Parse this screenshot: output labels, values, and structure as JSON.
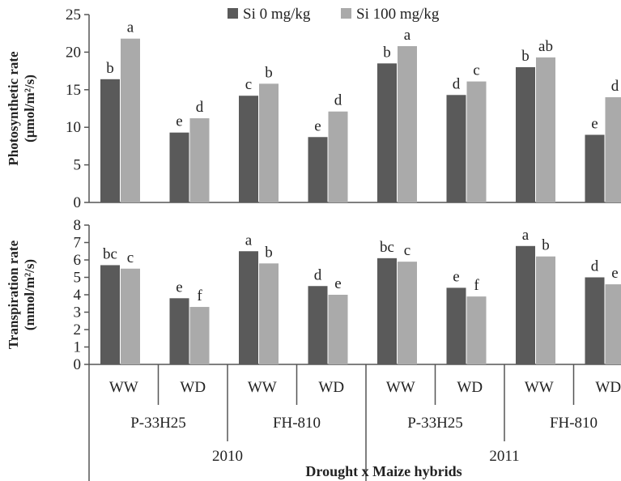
{
  "chart_data": [
    {
      "type": "bar",
      "ylabel": "Photosynthetic rate (µmol/m²/s)",
      "ylim": [
        0,
        25
      ],
      "yticks": [
        0,
        5,
        10,
        15,
        20,
        25
      ],
      "categories": [
        "WW",
        "WD",
        "WW",
        "WD",
        "WW",
        "WD",
        "WW",
        "WD"
      ],
      "series": [
        {
          "name": "Si 0 mg/kg",
          "values": [
            16.4,
            9.3,
            14.2,
            8.7,
            18.5,
            14.3,
            18.0,
            9.0
          ],
          "labels": [
            "b",
            "e",
            "c",
            "e",
            "b",
            "d",
            "b",
            "e"
          ]
        },
        {
          "name": "Si 100 mg/kg",
          "values": [
            21.8,
            11.2,
            15.8,
            12.1,
            20.8,
            16.1,
            19.3,
            14.0
          ],
          "labels": [
            "a",
            "d",
            "b",
            "d",
            "a",
            "c",
            "ab",
            "d"
          ]
        }
      ]
    },
    {
      "type": "bar",
      "ylabel": "Transpiration rate (mmol/m²/s)",
      "ylim": [
        0,
        8
      ],
      "yticks": [
        0,
        1,
        2,
        3,
        4,
        5,
        6,
        7,
        8
      ],
      "categories": [
        "WW",
        "WD",
        "WW",
        "WD",
        "WW",
        "WD",
        "WW",
        "WD"
      ],
      "series": [
        {
          "name": "Si 0 mg/kg",
          "values": [
            5.7,
            3.8,
            6.5,
            4.5,
            6.1,
            4.4,
            6.8,
            5.0
          ],
          "labels": [
            "bc",
            "e",
            "a",
            "d",
            "bc",
            "e",
            "a",
            "d"
          ]
        },
        {
          "name": "Si 100 mg/kg",
          "values": [
            5.5,
            3.3,
            5.8,
            4.0,
            5.9,
            3.9,
            6.2,
            4.6
          ],
          "labels": [
            "c",
            "f",
            "b",
            "e",
            "c",
            "f",
            "b",
            "e"
          ]
        }
      ]
    }
  ],
  "hybrids": [
    "P-33H25",
    "FH-810",
    "P-33H25",
    "FH-810"
  ],
  "years": [
    "2010",
    "2011"
  ],
  "xlabel": "Drought x Maize hybrids",
  "legend": [
    "Si 0 mg/kg",
    "Si 100 mg/kg"
  ],
  "colors": {
    "si0": "#5a5a5a",
    "si100": "#aaaaaa",
    "axis": "#555555"
  }
}
